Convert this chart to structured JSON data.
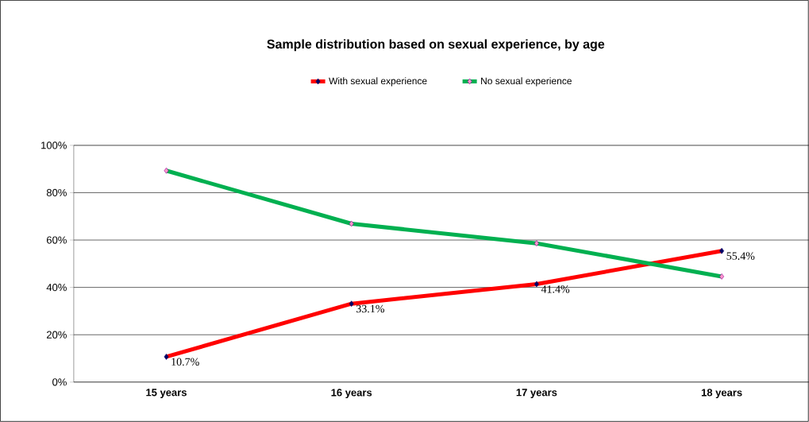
{
  "chart_data": {
    "type": "line",
    "title": "Sample distribution based on sexual experience, by age",
    "categories": [
      "15 years",
      "16 years",
      "17 years",
      "18 years"
    ],
    "series": [
      {
        "name": "With sexual experience",
        "color": "#ff0000",
        "values": [
          10.7,
          33.1,
          41.4,
          55.4
        ],
        "value_labels": [
          "10.7%",
          "33.1%",
          "41.4%",
          "55.4%"
        ]
      },
      {
        "name": "No sexual experience",
        "color": "#00b050",
        "values": [
          89.3,
          66.9,
          58.6,
          44.6
        ]
      }
    ],
    "ylim": [
      0,
      100
    ],
    "yticks": [
      {
        "value": 0,
        "label": "0%"
      },
      {
        "value": 20,
        "label": "20%"
      },
      {
        "value": 40,
        "label": "40%"
      },
      {
        "value": 60,
        "label": "60%"
      },
      {
        "value": 80,
        "label": "80%"
      },
      {
        "value": 100,
        "label": "100%"
      }
    ],
    "grid": "y",
    "legend": "top",
    "marker": "diamond",
    "line_style": "solid"
  }
}
